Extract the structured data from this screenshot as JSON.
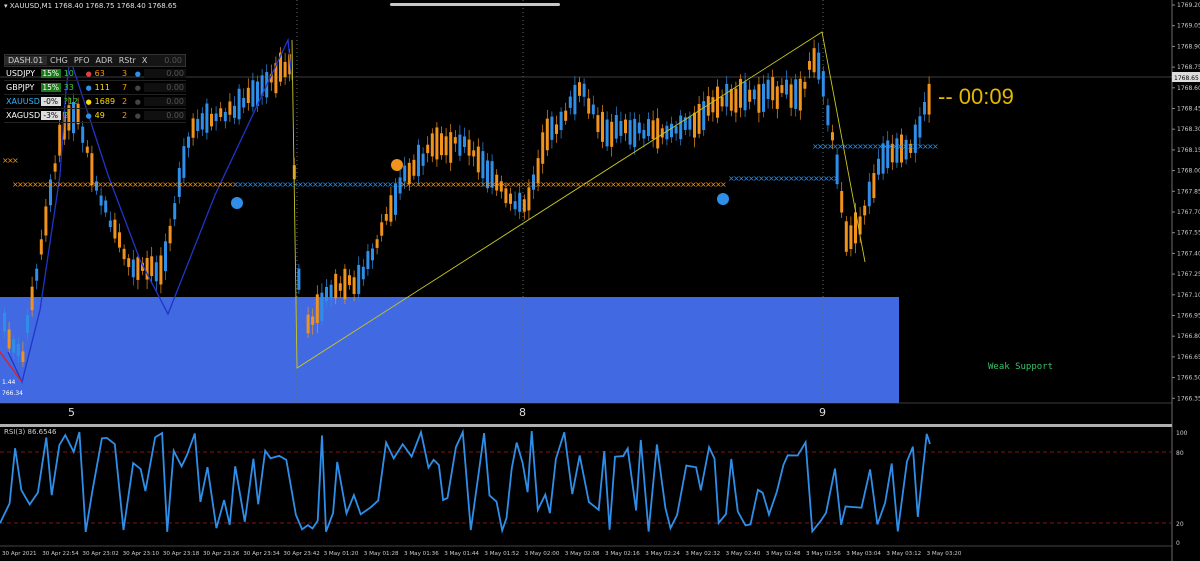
{
  "header": {
    "symbol_line": "XAUUSD,M1  1768.40 1768.75 1768.40 1768.65"
  },
  "price_axis": {
    "labels": [
      "1769.20",
      "1769.05",
      "1768.90",
      "1768.75",
      "1768.60",
      "1768.45",
      "1768.30",
      "1768.15",
      "1768.00",
      "1767.85",
      "1767.70",
      "1767.55",
      "1767.40",
      "1767.25",
      "1767.10",
      "1766.95",
      "1766.80",
      "1766.65",
      "1766.50",
      "1766.35"
    ],
    "current_price": "1768.65"
  },
  "day_labels": [
    "5",
    "8",
    "9"
  ],
  "time_axis": {
    "labels": [
      "30 Apr 2021",
      "30 Apr 22:54",
      "30 Apr 23:02",
      "30 Apr 23:10",
      "30 Apr 23:18",
      "30 Apr 23:26",
      "30 Apr 23:34",
      "30 Apr 23:42",
      "3 May 01:20",
      "3 May 01:28",
      "3 May 01:36",
      "3 May 01:44",
      "3 May 01:52",
      "3 May 02:00",
      "3 May 02:08",
      "3 May 02:16",
      "3 May 02:24",
      "3 May 02:32",
      "3 May 02:40",
      "3 May 02:48",
      "3 May 02:56",
      "3 May 03:04",
      "3 May 03:12",
      "3 May 03:20"
    ]
  },
  "dashboard": {
    "name": "DASH.01",
    "headers": [
      "CHG",
      "PFO",
      "ADR",
      "RStr",
      "X"
    ],
    "value": "0.00",
    "rows": [
      {
        "symbol": "USDJPY",
        "chg": "15%",
        "pfo": "10",
        "adr": "63",
        "rstr": "3",
        "dot": "●",
        "value": "0.00"
      },
      {
        "symbol": "GBPJPY",
        "chg": "15%",
        "pfo": "33",
        "adr": "111",
        "rstr": "7",
        "dot": "●",
        "value": "0.00"
      },
      {
        "symbol": "XAUUSD",
        "chg": "-0%",
        "pfo": "?12",
        "adr": "1689",
        "rstr": "2",
        "dot": "●",
        "value": "0.00"
      },
      {
        "symbol": "XAGUSD",
        "chg": "-3%",
        "pfo": "2",
        "adr": "49",
        "rstr": "2",
        "dot": "●",
        "value": "0.00"
      }
    ]
  },
  "countdown": "--  00:09",
  "support_label": "Weak Support",
  "box_labels": [
    "1.44",
    "766.34"
  ],
  "rsi": {
    "label": "RSI(3) 86.6546",
    "levels": [
      "100",
      "80",
      "20",
      "0"
    ]
  },
  "colors": {
    "bull": "#2f8fe8",
    "bear": "#f0921c",
    "support_box": "#4169e1",
    "zigzag": "#2035c8",
    "trend_line": "#c8c820",
    "countdown": "#e6b800",
    "rsi_line": "#2f8fe8",
    "rsi_level": "#b01818"
  }
}
